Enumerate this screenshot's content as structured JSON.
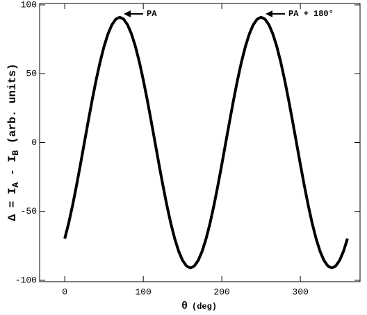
{
  "chart_data": {
    "type": "line",
    "xlabel": "θ",
    "xlabel_unit": "(deg)",
    "ylabel_parts": [
      "Δ = I",
      "A",
      " - I",
      "B",
      " (arb. units)"
    ],
    "annotations": [
      "PA",
      "PA + 180°"
    ],
    "x": [
      0,
      5,
      10,
      15,
      20,
      25,
      30,
      35,
      40,
      45,
      50,
      55,
      60,
      65,
      70,
      75,
      80,
      85,
      90,
      95,
      100,
      105,
      110,
      115,
      120,
      125,
      130,
      135,
      140,
      145,
      150,
      155,
      160,
      165,
      170,
      175,
      180,
      185,
      190,
      195,
      200,
      205,
      210,
      215,
      220,
      225,
      230,
      235,
      240,
      245,
      250,
      255,
      260,
      265,
      270,
      275,
      280,
      285,
      290,
      295,
      300,
      305,
      310,
      315,
      320,
      325,
      330,
      335,
      340,
      345,
      350,
      355,
      360
    ],
    "series": [
      {
        "color": "#000000",
        "values": [
          -69.7,
          -58.5,
          -45.5,
          -31.1,
          -15.8,
          0,
          15.8,
          31.1,
          45.5,
          58.5,
          69.7,
          78.8,
          85.5,
          89.6,
          91,
          89.6,
          85.5,
          78.8,
          69.7,
          58.5,
          45.5,
          31.1,
          15.8,
          0,
          -15.8,
          -31.1,
          -45.5,
          -58.5,
          -69.7,
          -78.8,
          -85.5,
          -89.6,
          -91,
          -89.6,
          -85.5,
          -78.8,
          -69.7,
          -58.5,
          -45.5,
          -31.1,
          -15.8,
          0,
          15.8,
          31.1,
          45.5,
          58.5,
          69.7,
          78.8,
          85.5,
          89.6,
          91,
          89.6,
          85.5,
          78.8,
          69.7,
          58.5,
          45.5,
          31.1,
          15.8,
          0,
          -15.8,
          -31.1,
          -45.5,
          -58.5,
          -69.7,
          -78.8,
          -85.5,
          -89.6,
          -91,
          -89.6,
          -85.5,
          -78.8,
          -69.7
        ]
      }
    ],
    "xlim": [
      -32,
      376
    ],
    "xticks": [
      0,
      100,
      200,
      300
    ],
    "ylim": [
      -101,
      101
    ],
    "yticks": [
      -100,
      -50,
      0,
      50,
      100
    ]
  }
}
